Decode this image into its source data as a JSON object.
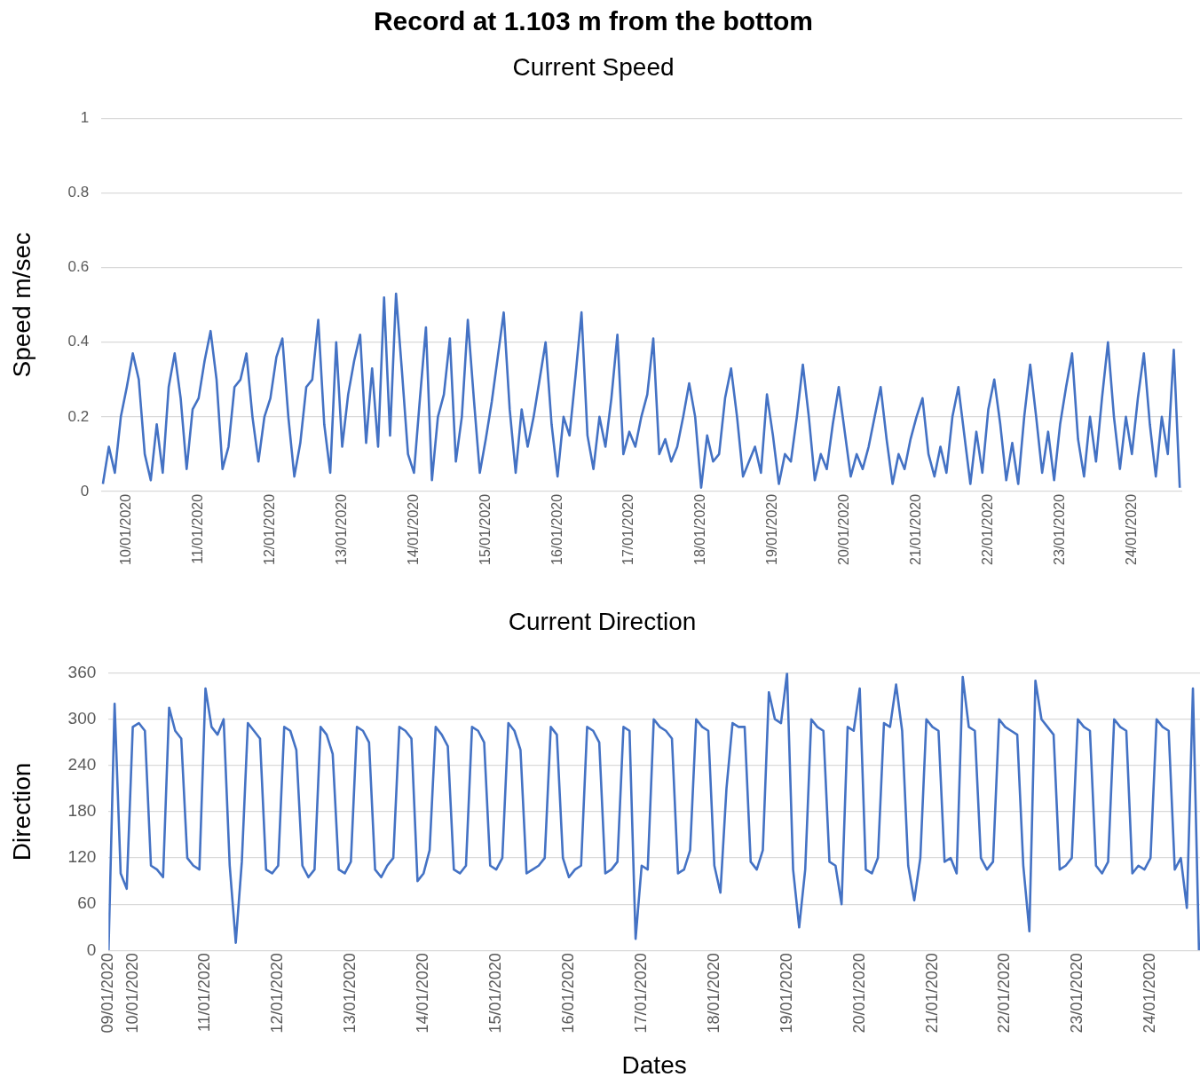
{
  "chart_data": [
    {
      "type": "line",
      "title": "Record at 1.103 m from the bottom",
      "subtitle": "Current Speed",
      "ylabel": "Speed m/sec",
      "marker": "none",
      "grid": "y",
      "legend": false,
      "x": [
        "2020-01-09T16:00",
        "2020-01-09T18:00",
        "2020-01-09T20:00",
        "2020-01-09T22:00",
        "2020-01-10T00:00",
        "2020-01-10T02:00",
        "2020-01-10T04:00",
        "2020-01-10T06:00",
        "2020-01-10T08:00",
        "2020-01-10T10:00",
        "2020-01-10T12:00",
        "2020-01-10T14:00",
        "2020-01-10T16:00",
        "2020-01-10T18:00",
        "2020-01-10T20:00",
        "2020-01-10T22:00",
        "2020-01-11T00:00",
        "2020-01-11T02:00",
        "2020-01-11T04:00",
        "2020-01-11T06:00",
        "2020-01-11T08:00",
        "2020-01-11T10:00",
        "2020-01-11T12:00",
        "2020-01-11T14:00",
        "2020-01-11T16:00",
        "2020-01-11T18:00",
        "2020-01-11T20:00",
        "2020-01-11T22:00",
        "2020-01-12T00:00",
        "2020-01-12T02:00",
        "2020-01-12T04:00",
        "2020-01-12T06:00",
        "2020-01-12T08:00",
        "2020-01-12T10:00",
        "2020-01-12T12:00",
        "2020-01-12T14:00",
        "2020-01-12T16:00",
        "2020-01-12T18:00",
        "2020-01-12T20:00",
        "2020-01-12T22:00",
        "2020-01-13T00:00",
        "2020-01-13T02:00",
        "2020-01-13T04:00",
        "2020-01-13T06:00",
        "2020-01-13T08:00",
        "2020-01-13T10:00",
        "2020-01-13T12:00",
        "2020-01-13T14:00",
        "2020-01-13T16:00",
        "2020-01-13T18:00",
        "2020-01-13T20:00",
        "2020-01-13T22:00",
        "2020-01-14T00:00",
        "2020-01-14T02:00",
        "2020-01-14T04:00",
        "2020-01-14T06:00",
        "2020-01-14T08:00",
        "2020-01-14T10:00",
        "2020-01-14T12:00",
        "2020-01-14T14:00",
        "2020-01-14T16:00",
        "2020-01-14T18:00",
        "2020-01-14T20:00",
        "2020-01-14T22:00",
        "2020-01-15T00:00",
        "2020-01-15T02:00",
        "2020-01-15T04:00",
        "2020-01-15T06:00",
        "2020-01-15T08:00",
        "2020-01-15T10:00",
        "2020-01-15T12:00",
        "2020-01-15T14:00",
        "2020-01-15T16:00",
        "2020-01-15T18:00",
        "2020-01-15T20:00",
        "2020-01-15T22:00",
        "2020-01-16T00:00",
        "2020-01-16T02:00",
        "2020-01-16T04:00",
        "2020-01-16T06:00",
        "2020-01-16T08:00",
        "2020-01-16T10:00",
        "2020-01-16T12:00",
        "2020-01-16T14:00",
        "2020-01-16T16:00",
        "2020-01-16T18:00",
        "2020-01-16T20:00",
        "2020-01-16T22:00",
        "2020-01-17T00:00",
        "2020-01-17T02:00",
        "2020-01-17T04:00",
        "2020-01-17T06:00",
        "2020-01-17T08:00",
        "2020-01-17T10:00",
        "2020-01-17T12:00",
        "2020-01-17T14:00",
        "2020-01-17T16:00",
        "2020-01-17T18:00",
        "2020-01-17T20:00",
        "2020-01-17T22:00",
        "2020-01-18T00:00",
        "2020-01-18T02:00",
        "2020-01-18T04:00",
        "2020-01-18T06:00",
        "2020-01-18T08:00",
        "2020-01-18T10:00",
        "2020-01-18T12:00",
        "2020-01-18T14:00",
        "2020-01-18T16:00",
        "2020-01-18T18:00",
        "2020-01-18T20:00",
        "2020-01-18T22:00",
        "2020-01-19T00:00",
        "2020-01-19T02:00",
        "2020-01-19T04:00",
        "2020-01-19T06:00",
        "2020-01-19T08:00",
        "2020-01-19T10:00",
        "2020-01-19T12:00",
        "2020-01-19T14:00",
        "2020-01-19T16:00",
        "2020-01-19T18:00",
        "2020-01-19T20:00",
        "2020-01-19T22:00",
        "2020-01-20T00:00",
        "2020-01-20T02:00",
        "2020-01-20T04:00",
        "2020-01-20T06:00",
        "2020-01-20T08:00",
        "2020-01-20T10:00",
        "2020-01-20T12:00",
        "2020-01-20T14:00",
        "2020-01-20T16:00",
        "2020-01-20T18:00",
        "2020-01-20T20:00",
        "2020-01-20T22:00",
        "2020-01-21T00:00",
        "2020-01-21T02:00",
        "2020-01-21T04:00",
        "2020-01-21T06:00",
        "2020-01-21T08:00",
        "2020-01-21T10:00",
        "2020-01-21T12:00",
        "2020-01-21T14:00",
        "2020-01-21T16:00",
        "2020-01-21T18:00",
        "2020-01-21T20:00",
        "2020-01-21T22:00",
        "2020-01-22T00:00",
        "2020-01-22T02:00",
        "2020-01-22T04:00",
        "2020-01-22T06:00",
        "2020-01-22T08:00",
        "2020-01-22T10:00",
        "2020-01-22T12:00",
        "2020-01-22T14:00",
        "2020-01-22T16:00",
        "2020-01-22T18:00",
        "2020-01-22T20:00",
        "2020-01-22T22:00",
        "2020-01-23T00:00",
        "2020-01-23T02:00",
        "2020-01-23T04:00",
        "2020-01-23T06:00",
        "2020-01-23T08:00",
        "2020-01-23T10:00",
        "2020-01-23T12:00",
        "2020-01-23T14:00",
        "2020-01-23T16:00",
        "2020-01-23T18:00",
        "2020-01-23T20:00",
        "2020-01-23T22:00",
        "2020-01-24T00:00",
        "2020-01-24T02:00",
        "2020-01-24T04:00",
        "2020-01-24T06:00",
        "2020-01-24T08:00",
        "2020-01-24T10:00",
        "2020-01-24T12:00",
        "2020-01-24T14:00",
        "2020-01-24T16:00"
      ],
      "series": [
        {
          "color": "#4472c4",
          "values": [
            0.02,
            0.12,
            0.05,
            0.2,
            0.28,
            0.37,
            0.3,
            0.1,
            0.03,
            0.18,
            0.05,
            0.28,
            0.37,
            0.25,
            0.06,
            0.22,
            0.25,
            0.35,
            0.43,
            0.3,
            0.06,
            0.12,
            0.28,
            0.3,
            0.37,
            0.2,
            0.08,
            0.2,
            0.25,
            0.36,
            0.41,
            0.2,
            0.04,
            0.13,
            0.28,
            0.3,
            0.46,
            0.18,
            0.05,
            0.4,
            0.12,
            0.26,
            0.35,
            0.42,
            0.13,
            0.33,
            0.12,
            0.52,
            0.15,
            0.53,
            0.32,
            0.1,
            0.05,
            0.25,
            0.44,
            0.03,
            0.2,
            0.26,
            0.41,
            0.08,
            0.2,
            0.46,
            0.25,
            0.05,
            0.14,
            0.24,
            0.36,
            0.48,
            0.22,
            0.05,
            0.22,
            0.12,
            0.2,
            0.3,
            0.4,
            0.18,
            0.04,
            0.2,
            0.15,
            0.31,
            0.48,
            0.15,
            0.06,
            0.2,
            0.12,
            0.25,
            0.42,
            0.1,
            0.16,
            0.12,
            0.2,
            0.26,
            0.41,
            0.1,
            0.14,
            0.08,
            0.12,
            0.2,
            0.29,
            0.2,
            0.01,
            0.15,
            0.08,
            0.1,
            0.25,
            0.33,
            0.2,
            0.04,
            0.08,
            0.12,
            0.05,
            0.26,
            0.15,
            0.02,
            0.1,
            0.08,
            0.2,
            0.34,
            0.2,
            0.03,
            0.1,
            0.06,
            0.18,
            0.28,
            0.16,
            0.04,
            0.1,
            0.06,
            0.12,
            0.2,
            0.28,
            0.14,
            0.02,
            0.1,
            0.06,
            0.14,
            0.2,
            0.25,
            0.1,
            0.04,
            0.12,
            0.05,
            0.2,
            0.28,
            0.15,
            0.02,
            0.16,
            0.05,
            0.22,
            0.3,
            0.18,
            0.03,
            0.13,
            0.02,
            0.2,
            0.34,
            0.2,
            0.05,
            0.16,
            0.03,
            0.18,
            0.28,
            0.37,
            0.14,
            0.04,
            0.2,
            0.08,
            0.25,
            0.4,
            0.2,
            0.06,
            0.2,
            0.1,
            0.25,
            0.37,
            0.18,
            0.04,
            0.2,
            0.1,
            0.38,
            0.01
          ]
        }
      ],
      "xlim": [
        "2020-01-09T15:30",
        "2020-01-24T16:50"
      ],
      "xticks": [
        {
          "value": "2020-01-10",
          "label": "10/01/2020"
        },
        {
          "value": "2020-01-11",
          "label": "11/01/2020"
        },
        {
          "value": "2020-01-12",
          "label": "12/01/2020"
        },
        {
          "value": "2020-01-13",
          "label": "13/01/2020"
        },
        {
          "value": "2020-01-14",
          "label": "14/01/2020"
        },
        {
          "value": "2020-01-15",
          "label": "15/01/2020"
        },
        {
          "value": "2020-01-16",
          "label": "16/01/2020"
        },
        {
          "value": "2020-01-17",
          "label": "17/01/2020"
        },
        {
          "value": "2020-01-18",
          "label": "18/01/2020"
        },
        {
          "value": "2020-01-19",
          "label": "19/01/2020"
        },
        {
          "value": "2020-01-20",
          "label": "20/01/2020"
        },
        {
          "value": "2020-01-21",
          "label": "21/01/2020"
        },
        {
          "value": "2020-01-22",
          "label": "22/01/2020"
        },
        {
          "value": "2020-01-23",
          "label": "23/01/2020"
        },
        {
          "value": "2020-01-24",
          "label": "24/01/2020"
        }
      ],
      "ylim": [
        0,
        1
      ],
      "yticks": [
        0,
        0.2,
        0.4,
        0.6,
        0.8,
        1
      ]
    },
    {
      "type": "line",
      "title": "Current Direction",
      "xlabel": "Dates",
      "ylabel": "Direction",
      "marker": "none",
      "grid": "y",
      "legend": false,
      "x": [
        "2020-01-09T16:00",
        "2020-01-09T18:00",
        "2020-01-09T20:00",
        "2020-01-09T22:00",
        "2020-01-10T00:00",
        "2020-01-10T02:00",
        "2020-01-10T04:00",
        "2020-01-10T06:00",
        "2020-01-10T08:00",
        "2020-01-10T10:00",
        "2020-01-10T12:00",
        "2020-01-10T14:00",
        "2020-01-10T16:00",
        "2020-01-10T18:00",
        "2020-01-10T20:00",
        "2020-01-10T22:00",
        "2020-01-11T00:00",
        "2020-01-11T02:00",
        "2020-01-11T04:00",
        "2020-01-11T06:00",
        "2020-01-11T08:00",
        "2020-01-11T10:00",
        "2020-01-11T12:00",
        "2020-01-11T14:00",
        "2020-01-11T16:00",
        "2020-01-11T18:00",
        "2020-01-11T20:00",
        "2020-01-11T22:00",
        "2020-01-12T00:00",
        "2020-01-12T02:00",
        "2020-01-12T04:00",
        "2020-01-12T06:00",
        "2020-01-12T08:00",
        "2020-01-12T10:00",
        "2020-01-12T12:00",
        "2020-01-12T14:00",
        "2020-01-12T16:00",
        "2020-01-12T18:00",
        "2020-01-12T20:00",
        "2020-01-12T22:00",
        "2020-01-13T00:00",
        "2020-01-13T02:00",
        "2020-01-13T04:00",
        "2020-01-13T06:00",
        "2020-01-13T08:00",
        "2020-01-13T10:00",
        "2020-01-13T12:00",
        "2020-01-13T14:00",
        "2020-01-13T16:00",
        "2020-01-13T18:00",
        "2020-01-13T20:00",
        "2020-01-13T22:00",
        "2020-01-14T00:00",
        "2020-01-14T02:00",
        "2020-01-14T04:00",
        "2020-01-14T06:00",
        "2020-01-14T08:00",
        "2020-01-14T10:00",
        "2020-01-14T12:00",
        "2020-01-14T14:00",
        "2020-01-14T16:00",
        "2020-01-14T18:00",
        "2020-01-14T20:00",
        "2020-01-14T22:00",
        "2020-01-15T00:00",
        "2020-01-15T02:00",
        "2020-01-15T04:00",
        "2020-01-15T06:00",
        "2020-01-15T08:00",
        "2020-01-15T10:00",
        "2020-01-15T12:00",
        "2020-01-15T14:00",
        "2020-01-15T16:00",
        "2020-01-15T18:00",
        "2020-01-15T20:00",
        "2020-01-15T22:00",
        "2020-01-16T00:00",
        "2020-01-16T02:00",
        "2020-01-16T04:00",
        "2020-01-16T06:00",
        "2020-01-16T08:00",
        "2020-01-16T10:00",
        "2020-01-16T12:00",
        "2020-01-16T14:00",
        "2020-01-16T16:00",
        "2020-01-16T18:00",
        "2020-01-16T20:00",
        "2020-01-16T22:00",
        "2020-01-17T00:00",
        "2020-01-17T02:00",
        "2020-01-17T04:00",
        "2020-01-17T06:00",
        "2020-01-17T08:00",
        "2020-01-17T10:00",
        "2020-01-17T12:00",
        "2020-01-17T14:00",
        "2020-01-17T16:00",
        "2020-01-17T18:00",
        "2020-01-17T20:00",
        "2020-01-17T22:00",
        "2020-01-18T00:00",
        "2020-01-18T02:00",
        "2020-01-18T04:00",
        "2020-01-18T06:00",
        "2020-01-18T08:00",
        "2020-01-18T10:00",
        "2020-01-18T12:00",
        "2020-01-18T14:00",
        "2020-01-18T16:00",
        "2020-01-18T18:00",
        "2020-01-18T20:00",
        "2020-01-18T22:00",
        "2020-01-19T00:00",
        "2020-01-19T02:00",
        "2020-01-19T04:00",
        "2020-01-19T06:00",
        "2020-01-19T08:00",
        "2020-01-19T10:00",
        "2020-01-19T12:00",
        "2020-01-19T14:00",
        "2020-01-19T16:00",
        "2020-01-19T18:00",
        "2020-01-19T20:00",
        "2020-01-19T22:00",
        "2020-01-20T00:00",
        "2020-01-20T02:00",
        "2020-01-20T04:00",
        "2020-01-20T06:00",
        "2020-01-20T08:00",
        "2020-01-20T10:00",
        "2020-01-20T12:00",
        "2020-01-20T14:00",
        "2020-01-20T16:00",
        "2020-01-20T18:00",
        "2020-01-20T20:00",
        "2020-01-20T22:00",
        "2020-01-21T00:00",
        "2020-01-21T02:00",
        "2020-01-21T04:00",
        "2020-01-21T06:00",
        "2020-01-21T08:00",
        "2020-01-21T10:00",
        "2020-01-21T12:00",
        "2020-01-21T14:00",
        "2020-01-21T16:00",
        "2020-01-21T18:00",
        "2020-01-21T20:00",
        "2020-01-21T22:00",
        "2020-01-22T00:00",
        "2020-01-22T02:00",
        "2020-01-22T04:00",
        "2020-01-22T06:00",
        "2020-01-22T08:00",
        "2020-01-22T10:00",
        "2020-01-22T12:00",
        "2020-01-22T14:00",
        "2020-01-22T16:00",
        "2020-01-22T18:00",
        "2020-01-22T20:00",
        "2020-01-22T22:00",
        "2020-01-23T00:00",
        "2020-01-23T02:00",
        "2020-01-23T04:00",
        "2020-01-23T06:00",
        "2020-01-23T08:00",
        "2020-01-23T10:00",
        "2020-01-23T12:00",
        "2020-01-23T14:00",
        "2020-01-23T16:00",
        "2020-01-23T18:00",
        "2020-01-23T20:00",
        "2020-01-23T22:00",
        "2020-01-24T00:00",
        "2020-01-24T02:00",
        "2020-01-24T04:00",
        "2020-01-24T06:00",
        "2020-01-24T08:00",
        "2020-01-24T10:00",
        "2020-01-24T12:00",
        "2020-01-24T14:00",
        "2020-01-24T16:00"
      ],
      "series": [
        {
          "color": "#4472c4",
          "values": [
            0,
            320,
            100,
            80,
            290,
            295,
            285,
            110,
            105,
            95,
            315,
            285,
            275,
            120,
            110,
            105,
            340,
            290,
            280,
            300,
            110,
            10,
            115,
            295,
            285,
            275,
            105,
            100,
            110,
            290,
            285,
            260,
            110,
            95,
            105,
            290,
            280,
            255,
            105,
            100,
            115,
            290,
            285,
            270,
            105,
            95,
            110,
            120,
            290,
            285,
            275,
            90,
            100,
            130,
            290,
            280,
            265,
            105,
            100,
            110,
            290,
            285,
            270,
            110,
            105,
            120,
            295,
            285,
            260,
            100,
            105,
            110,
            120,
            290,
            280,
            120,
            95,
            105,
            110,
            290,
            285,
            270,
            100,
            105,
            115,
            290,
            285,
            15,
            110,
            105,
            300,
            290,
            285,
            275,
            100,
            105,
            130,
            300,
            290,
            285,
            110,
            75,
            210,
            295,
            290,
            290,
            115,
            105,
            130,
            335,
            300,
            295,
            360,
            105,
            30,
            105,
            300,
            290,
            285,
            115,
            110,
            60,
            290,
            285,
            340,
            105,
            100,
            120,
            295,
            290,
            345,
            285,
            110,
            65,
            120,
            300,
            290,
            285,
            115,
            120,
            100,
            355,
            290,
            285,
            120,
            105,
            115,
            300,
            290,
            285,
            280,
            110,
            25,
            350,
            300,
            290,
            280,
            105,
            110,
            120,
            300,
            290,
            285,
            110,
            100,
            115,
            300,
            290,
            285,
            100,
            110,
            105,
            120,
            300,
            290,
            285,
            105,
            120,
            55,
            340,
            0
          ]
        }
      ],
      "xlim": [
        "2020-01-09T16:00",
        "2020-01-24T16:20"
      ],
      "xticks": [
        {
          "value": "2020-01-09T16:00",
          "label": "09/01/2020"
        },
        {
          "value": "2020-01-10",
          "label": "10/01/2020"
        },
        {
          "value": "2020-01-11",
          "label": "11/01/2020"
        },
        {
          "value": "2020-01-12",
          "label": "12/01/2020"
        },
        {
          "value": "2020-01-13",
          "label": "13/01/2020"
        },
        {
          "value": "2020-01-14",
          "label": "14/01/2020"
        },
        {
          "value": "2020-01-15",
          "label": "15/01/2020"
        },
        {
          "value": "2020-01-16",
          "label": "16/01/2020"
        },
        {
          "value": "2020-01-17",
          "label": "17/01/2020"
        },
        {
          "value": "2020-01-18",
          "label": "18/01/2020"
        },
        {
          "value": "2020-01-19",
          "label": "19/01/2020"
        },
        {
          "value": "2020-01-20",
          "label": "20/01/2020"
        },
        {
          "value": "2020-01-21",
          "label": "21/01/2020"
        },
        {
          "value": "2020-01-22",
          "label": "22/01/2020"
        },
        {
          "value": "2020-01-23",
          "label": "23/01/2020"
        },
        {
          "value": "2020-01-24",
          "label": "24/01/2020"
        }
      ],
      "ylim": [
        0,
        360
      ],
      "yticks": [
        0,
        60,
        120,
        180,
        240,
        300,
        360
      ]
    }
  ]
}
